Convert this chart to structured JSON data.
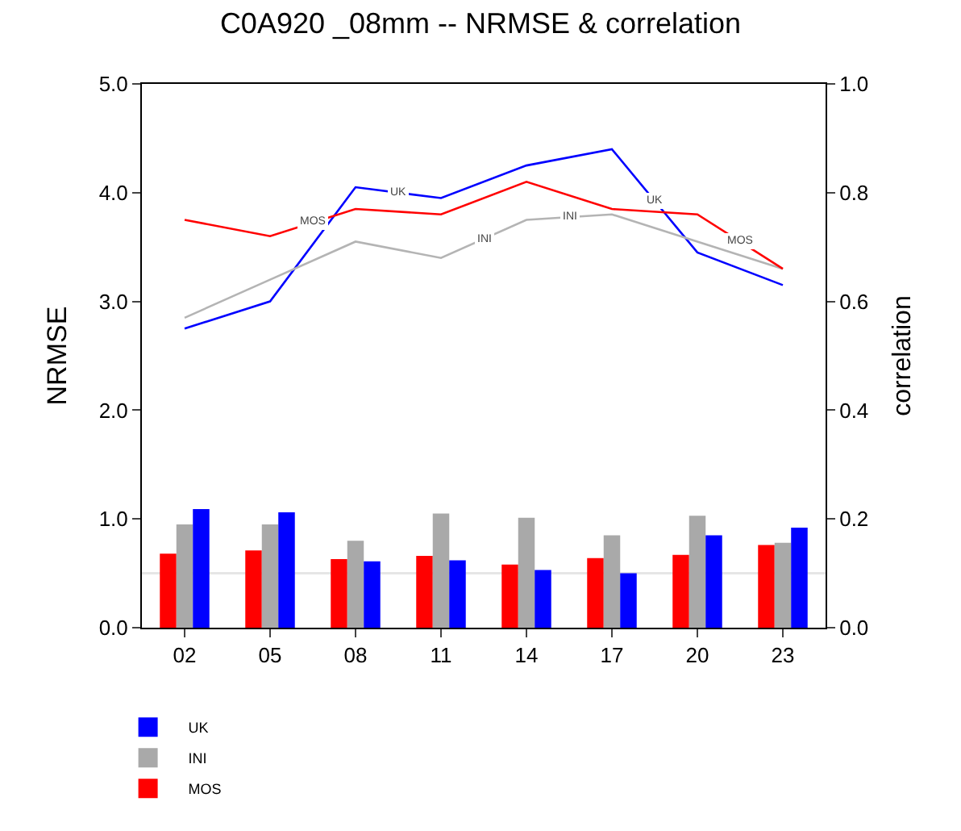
{
  "chart_data": {
    "type": "bar",
    "title": "C0A920 _08mm -- NRMSE & correlation",
    "ylabel": "NRMSE",
    "y2label": "correlation",
    "categories": [
      "02",
      "05",
      "08",
      "11",
      "14",
      "17",
      "20",
      "23"
    ],
    "series": [
      {
        "name": "MOS",
        "color": "#ff0000",
        "values": [
          0.68,
          0.71,
          0.63,
          0.66,
          0.58,
          0.64,
          0.67,
          0.76
        ]
      },
      {
        "name": "INI",
        "color": "#a9a9a9",
        "values": [
          0.95,
          0.95,
          0.8,
          1.05,
          1.01,
          0.85,
          1.03,
          0.78
        ]
      },
      {
        "name": "UK",
        "color": "#0000ff",
        "values": [
          1.09,
          1.06,
          0.61,
          0.62,
          0.53,
          0.5,
          0.85,
          0.92
        ]
      },
      {
        "name": "UK",
        "type": "line",
        "axis": "y2",
        "color": "#0000ff",
        "values": [
          0.55,
          0.6,
          0.81,
          0.79,
          0.85,
          0.88,
          0.69,
          0.63
        ]
      },
      {
        "name": "INI",
        "type": "line",
        "axis": "y2",
        "color": "#b4b4b4",
        "values": [
          0.57,
          0.64,
          0.71,
          0.68,
          0.75,
          0.76,
          0.71,
          0.66
        ]
      },
      {
        "name": "MOS",
        "type": "line",
        "axis": "y2",
        "color": "#ff0000",
        "values": [
          0.75,
          0.72,
          0.77,
          0.76,
          0.82,
          0.77,
          0.76,
          0.66
        ]
      }
    ],
    "ylim": [
      0,
      5
    ],
    "yticks": [
      {
        "value": 0,
        "label": "0.0"
      },
      {
        "value": 1,
        "label": "1.0"
      },
      {
        "value": 2,
        "label": "2.0"
      },
      {
        "value": 3,
        "label": "3.0"
      },
      {
        "value": 4,
        "label": "4.0"
      },
      {
        "value": 5,
        "label": "5.0"
      }
    ],
    "y2lim": [
      0,
      1
    ],
    "y2ticks": [
      {
        "value": 0,
        "label": "0.0"
      },
      0.2,
      0.4,
      0.6,
      0.8,
      {
        "value": 1,
        "label": "1.0"
      }
    ],
    "ref_lines": [
      {
        "axis": "y",
        "value": 0.5,
        "color": "#e6e6e6"
      }
    ],
    "legend": "bottom left"
  }
}
